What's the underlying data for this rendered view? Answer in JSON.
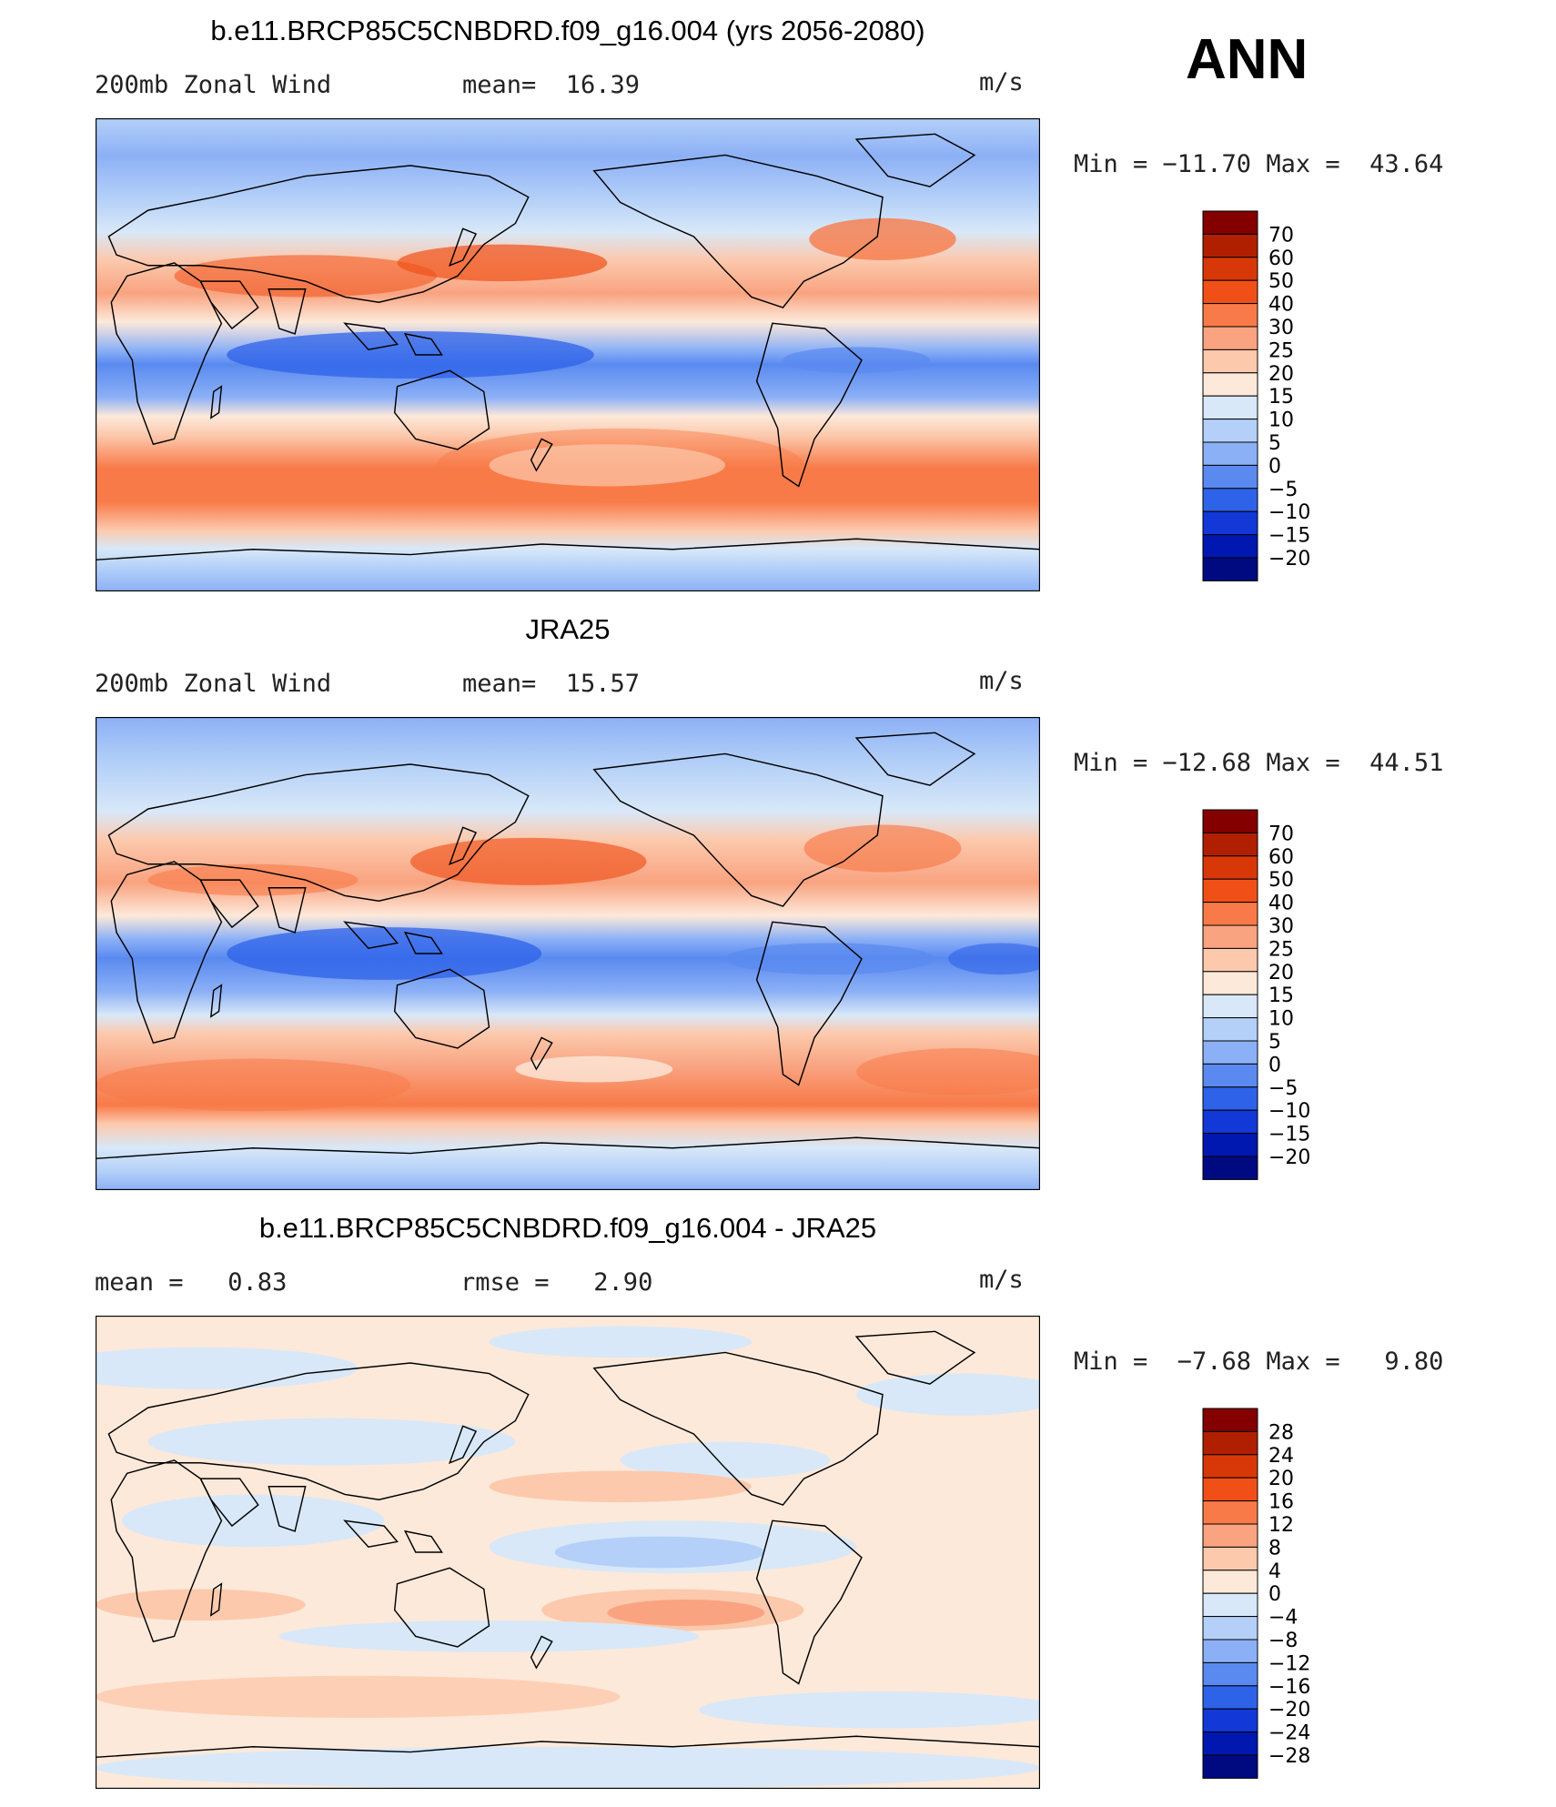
{
  "season": "ANN",
  "chart_data": [
    {
      "type": "heatmap",
      "title": "b.e11.BRCP85C5CNBDRD.f09_g16.004 (yrs 2056-2080)",
      "left_label": "200mb Zonal Wind",
      "stat_text": "mean=  16.39",
      "units": "m/s",
      "minmax_text": "Min = −11.70 Max =  43.64",
      "min": -11.7,
      "max": 43.64,
      "mean": 16.39,
      "colorbar_labels": [
        "70",
        "60",
        "50",
        "40",
        "30",
        "25",
        "20",
        "15",
        "10",
        "5",
        "0",
        "−5",
        "−10",
        "−15",
        "−20"
      ],
      "colorbar_colors": [
        "#840000",
        "#b02000",
        "#d83808",
        "#f05018",
        "#f87a48",
        "#f9a380",
        "#fcc9ad",
        "#fde9da",
        "#d8e8f8",
        "#b4d0f8",
        "#8cb0f6",
        "#5a8af0",
        "#2e62e8",
        "#1238d8",
        "#0018b0",
        "#000a80"
      ]
    },
    {
      "type": "heatmap",
      "title": "JRA25",
      "left_label": "200mb Zonal Wind",
      "stat_text": "mean=  15.57",
      "units": "m/s",
      "minmax_text": "Min = −12.68 Max =  44.51",
      "min": -12.68,
      "max": 44.51,
      "mean": 15.57,
      "colorbar_labels": [
        "70",
        "60",
        "50",
        "40",
        "30",
        "25",
        "20",
        "15",
        "10",
        "5",
        "0",
        "−5",
        "−10",
        "−15",
        "−20"
      ],
      "colorbar_colors": [
        "#840000",
        "#b02000",
        "#d83808",
        "#f05018",
        "#f87a48",
        "#f9a380",
        "#fcc9ad",
        "#fde9da",
        "#d8e8f8",
        "#b4d0f8",
        "#8cb0f6",
        "#5a8af0",
        "#2e62e8",
        "#1238d8",
        "#0018b0",
        "#000a80"
      ]
    },
    {
      "type": "heatmap",
      "title": "b.e11.BRCP85C5CNBDRD.f09_g16.004 - JRA25",
      "left_label": "mean =   0.83",
      "stat_text": "rmse =   2.90",
      "units": "m/s",
      "minmax_text": "Min =  −7.68 Max =   9.80",
      "min": -7.68,
      "max": 9.8,
      "mean": 0.83,
      "rmse": 2.9,
      "colorbar_labels": [
        "28",
        "24",
        "20",
        "16",
        "12",
        "8",
        "4",
        "0",
        "−4",
        "−8",
        "−12",
        "−16",
        "−20",
        "−24",
        "−28"
      ],
      "colorbar_colors": [
        "#840000",
        "#b02000",
        "#d83808",
        "#f05018",
        "#f87a48",
        "#f9a380",
        "#fcc9ad",
        "#fde9da",
        "#d8e8f8",
        "#b4d0f8",
        "#8cb0f6",
        "#5a8af0",
        "#2e62e8",
        "#1238d8",
        "#0018b0",
        "#000a80"
      ]
    }
  ]
}
